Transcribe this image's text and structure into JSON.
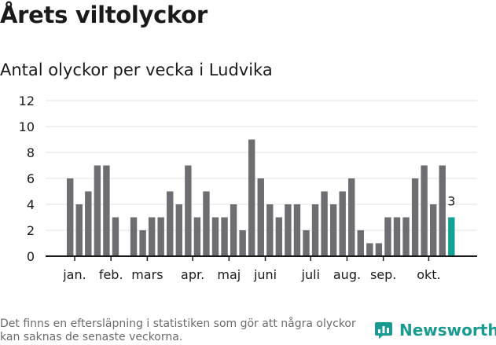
{
  "header": {
    "title": "Årets viltolyckor",
    "subtitle": "Antal olyckor per vecka i Ludvika"
  },
  "footer": {
    "note": "Det finns en eftersläpning i statistiken som gör att några olyckor kan saknas de senaste veckorna.",
    "brand_name": "Newsworthy",
    "brand_icon": "newsworthy-logo-icon"
  },
  "colors": {
    "bar": "#6d6d72",
    "highlight": "#13a394",
    "grid": "#e2e2e2",
    "axis": "#1a1a1a",
    "brand": "#1a9b91"
  },
  "chart_data": {
    "type": "bar",
    "x": [
      1,
      2,
      3,
      4,
      5,
      6,
      7,
      8,
      9,
      10,
      11,
      12,
      13,
      14,
      15,
      16,
      17,
      18,
      19,
      20,
      21,
      22,
      23,
      24,
      25,
      26,
      27,
      28,
      29,
      30,
      31,
      32,
      33,
      34,
      35,
      36,
      37,
      38,
      39,
      40,
      41,
      42,
      43
    ],
    "values": [
      6,
      4,
      5,
      7,
      7,
      3,
      0,
      3,
      2,
      3,
      3,
      5,
      4,
      7,
      3,
      5,
      3,
      3,
      4,
      2,
      9,
      6,
      4,
      3,
      4,
      4,
      2,
      4,
      5,
      4,
      5,
      6,
      2,
      1,
      1,
      3,
      3,
      3,
      6,
      7,
      4,
      7,
      3
    ],
    "month_labels": [
      {
        "label": "jan.",
        "week": 1.5
      },
      {
        "label": "feb.",
        "week": 5.5
      },
      {
        "label": "mars",
        "week": 9.5
      },
      {
        "label": "apr.",
        "week": 14.5
      },
      {
        "label": "maj",
        "week": 18.5
      },
      {
        "label": "juni",
        "week": 22.5
      },
      {
        "label": "juli",
        "week": 27.5
      },
      {
        "label": "aug.",
        "week": 31.5
      },
      {
        "label": "sep.",
        "week": 35.5
      },
      {
        "label": "okt.",
        "week": 40.5
      }
    ],
    "yticks": [
      0,
      2,
      4,
      6,
      8,
      10,
      12
    ],
    "ylim": [
      0,
      12
    ],
    "highlight_last": true,
    "last_value_label": "3",
    "grid": true,
    "title": "Årets viltolyckor",
    "subtitle": "Antal olyckor per vecka i Ludvika",
    "xlabel": "",
    "ylabel": ""
  }
}
